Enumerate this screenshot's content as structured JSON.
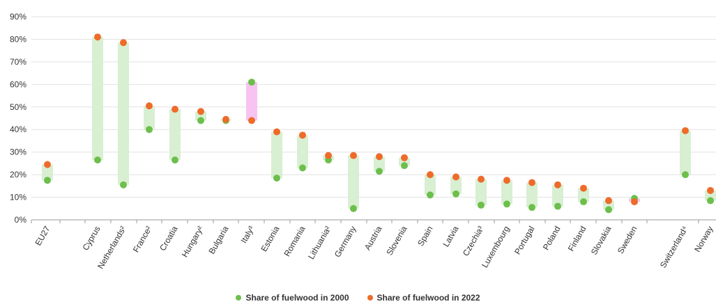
{
  "chart_data": {
    "type": "range-dot",
    "title": "",
    "xlabel": "",
    "ylabel": "",
    "ylim": [
      0,
      90
    ],
    "y_ticks": [
      "0%",
      "10%",
      "20%",
      "30%",
      "40%",
      "50%",
      "60%",
      "70%",
      "80%",
      "90%"
    ],
    "grid": "horizontal",
    "legend_placement": "bottom",
    "colors": {
      "y2000": "#6cbf4b",
      "y2022": "#ee6b2a",
      "bar_up": "#d8efd2",
      "bar_down": "#f7c4f2",
      "grid": "#e2e2e2",
      "axis": "#999999"
    },
    "categories": [
      "EU27",
      "Cyprus",
      "Netherlands²",
      "France²",
      "Croatia",
      "Hungary²",
      "Bulgaria",
      "Italy³",
      "Estonia",
      "Romania",
      "Lithuania²",
      "Germany",
      "Austria",
      "Slovenia",
      "Spain",
      "Latvia",
      "Czechia³",
      "Luxembourg",
      "Portugal",
      "Poland",
      "Finland",
      "Slovakia",
      "Sweden",
      "Switzerland⁴",
      "Norway"
    ],
    "series": [
      {
        "name": "Share of fuelwood in 2000",
        "values": [
          17.5,
          26.5,
          15.5,
          40,
          26.5,
          44,
          44,
          61,
          18.5,
          23,
          26.5,
          5,
          21.5,
          24,
          11,
          11.5,
          6.5,
          7,
          5.5,
          6,
          8,
          4.5,
          9.5,
          20,
          8.5
        ]
      },
      {
        "name": "Share of fuelwood in 2022",
        "values": [
          24.5,
          81,
          78.5,
          50.5,
          49,
          48,
          44.5,
          44,
          39,
          37.5,
          28.5,
          28.5,
          28,
          27.5,
          20,
          19,
          18,
          17.5,
          16.5,
          15.5,
          14,
          8.5,
          8,
          39.5,
          13
        ]
      }
    ]
  }
}
